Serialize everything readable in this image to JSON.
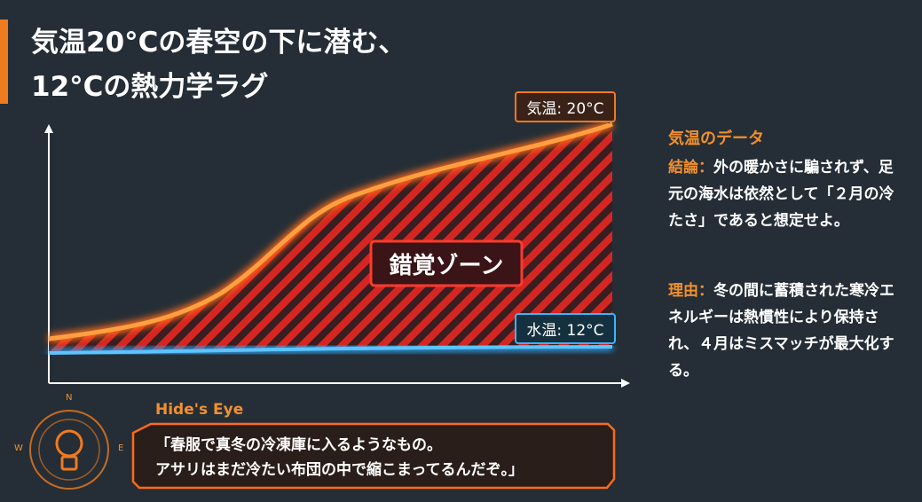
{
  "title": {
    "line1": "気温20°Cの春空の下に潜む、",
    "line2": "12°Cの熱力学ラグ"
  },
  "chart": {
    "air_label": "気温: 20°C",
    "water_label": "水温: 12°C",
    "zone_label": "錯覚ゾーン"
  },
  "compass": {
    "n": "N",
    "w": "W",
    "e": "E"
  },
  "hides_eye": {
    "heading": "Hide's Eye",
    "quote": [
      "「春服で真冬の冷凍庫に入るようなもの。",
      "アサリはまだ冷たい布団の中で縮こまってるんだぞ。」"
    ]
  },
  "side": {
    "heading": "気温のデータ",
    "sections": [
      {
        "label": "結論：",
        "text": "外の暖かさに騙されず、足元の海水は依然として「２月の冷たさ」であると想定せよ。"
      },
      {
        "label": "理由：",
        "text": "冬の間に蓄積された寒冷エネルギーは熱慣性により保持され、４月はミスマッチが最大化する。"
      }
    ]
  }
}
